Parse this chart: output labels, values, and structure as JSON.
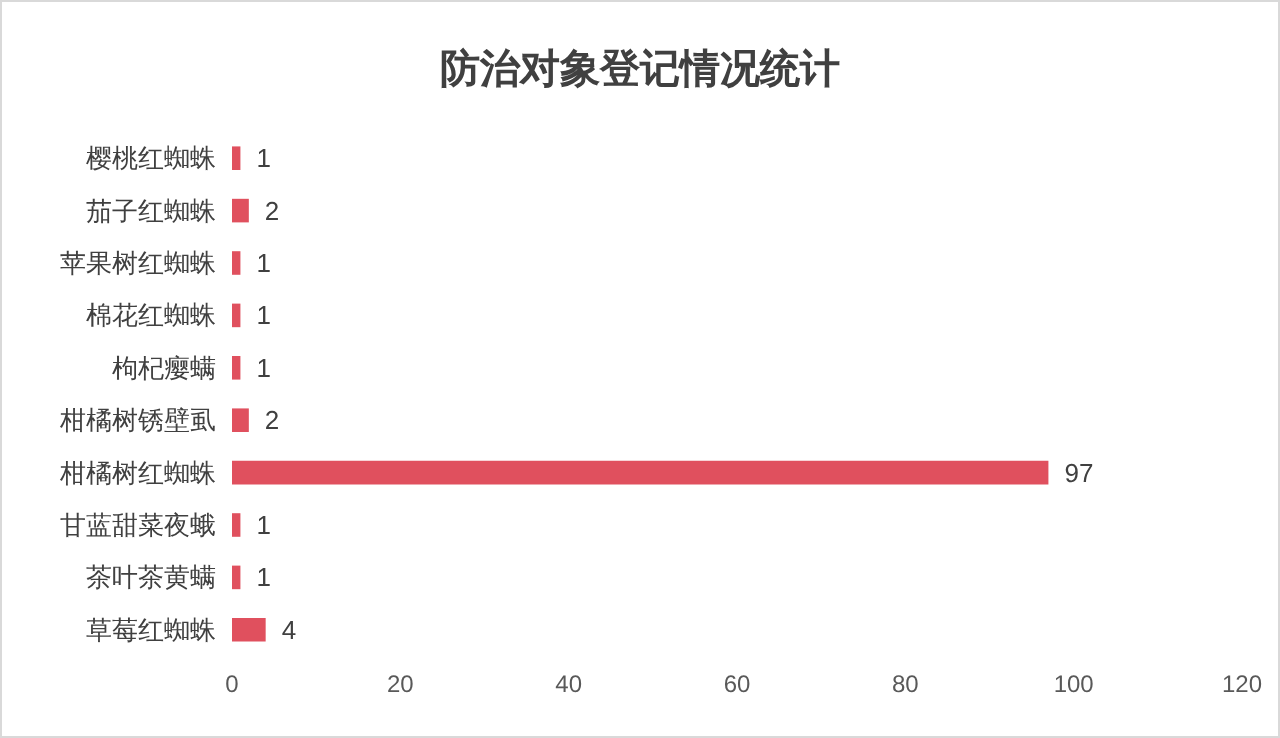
{
  "chart_data": {
    "type": "bar",
    "orientation": "horizontal",
    "title": "防治对象登记情况统计",
    "categories": [
      "樱桃红蜘蛛",
      "茄子红蜘蛛",
      "苹果树红蜘蛛",
      "棉花红蜘蛛",
      "枸杞瘿螨",
      "柑橘树锈壁虱",
      "柑橘树红蜘蛛",
      "甘蓝甜菜夜蛾",
      "茶叶茶黄螨",
      "草莓红蜘蛛"
    ],
    "values": [
      1,
      2,
      1,
      1,
      1,
      2,
      97,
      1,
      1,
      4
    ],
    "color": "#e0505e",
    "xlim": [
      0,
      120
    ],
    "xticks": [
      0,
      20,
      40,
      60,
      80,
      100,
      120
    ],
    "grid": false,
    "data_labels": true
  }
}
